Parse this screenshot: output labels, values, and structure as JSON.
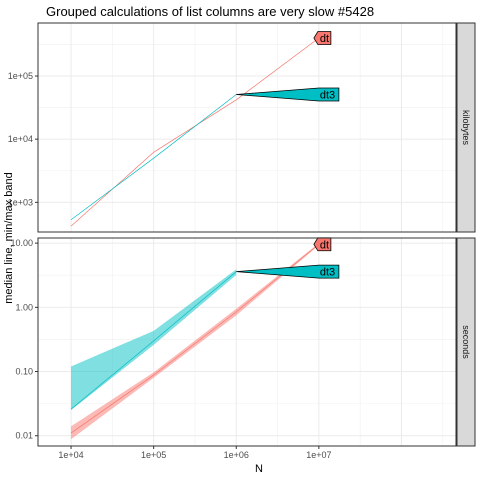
{
  "chart_data": {
    "type": "line",
    "title": "Grouped calculations of list columns are very slow #5428",
    "xlabel": "N",
    "ylabel": "median line, min/max band",
    "x_scale": "log10",
    "x_ticks": [
      10000,
      100000,
      1000000,
      10000000
    ],
    "x_tick_labels": [
      "1e+04",
      "1e+05",
      "1e+06",
      "1e+07"
    ],
    "colors": {
      "dt": "#F8766D",
      "dt3": "#00BFC4"
    },
    "panels": [
      {
        "strip": "kilobytes",
        "y_scale": "log10",
        "y_ticks": [
          1000,
          10000,
          100000
        ],
        "y_tick_labels": [
          "1e+03",
          "1e+04",
          "1e+05"
        ],
        "series": [
          {
            "name": "dt",
            "x": [
              10000,
              100000,
              1000000,
              10000000
            ],
            "median": [
              420,
              6200,
              42000,
              400000
            ],
            "min": [
              420,
              6200,
              42000,
              400000
            ],
            "max": [
              420,
              6200,
              42000,
              400000
            ]
          },
          {
            "name": "dt3",
            "x": [
              10000,
              100000,
              1000000
            ],
            "median": [
              530,
              5000,
              51000
            ],
            "min": [
              530,
              5000,
              51000
            ],
            "max": [
              530,
              5000,
              51000
            ]
          }
        ],
        "labels": [
          {
            "text": "dt",
            "series": "dt",
            "x": 10000000,
            "y": 400000
          },
          {
            "text": "dt3",
            "series": "dt3",
            "x": 10000000,
            "y": 51000
          }
        ]
      },
      {
        "strip": "seconds",
        "y_scale": "log10",
        "y_ticks": [
          0.01,
          0.1,
          1,
          10
        ],
        "y_tick_labels": [
          "0.01",
          "0.10",
          "1.00",
          "10.00"
        ],
        "series": [
          {
            "name": "dt",
            "x": [
              10000,
              100000,
              1000000,
              10000000
            ],
            "median": [
              0.011,
              0.088,
              0.85,
              9.6
            ],
            "min": [
              0.0088,
              0.08,
              0.75,
              9.3
            ],
            "max": [
              0.014,
              0.097,
              0.95,
              10.0
            ]
          },
          {
            "name": "dt3",
            "x": [
              10000,
              100000,
              1000000
            ],
            "median": [
              0.026,
              0.3,
              3.6
            ],
            "min": [
              0.025,
              0.26,
              3.2
            ],
            "max": [
              0.12,
              0.43,
              3.9
            ]
          }
        ],
        "labels": [
          {
            "text": "dt",
            "series": "dt",
            "x": 10000000,
            "y": 9.6
          },
          {
            "text": "dt3",
            "series": "dt3",
            "x": 10000000,
            "y": 3.6
          }
        ]
      }
    ]
  }
}
